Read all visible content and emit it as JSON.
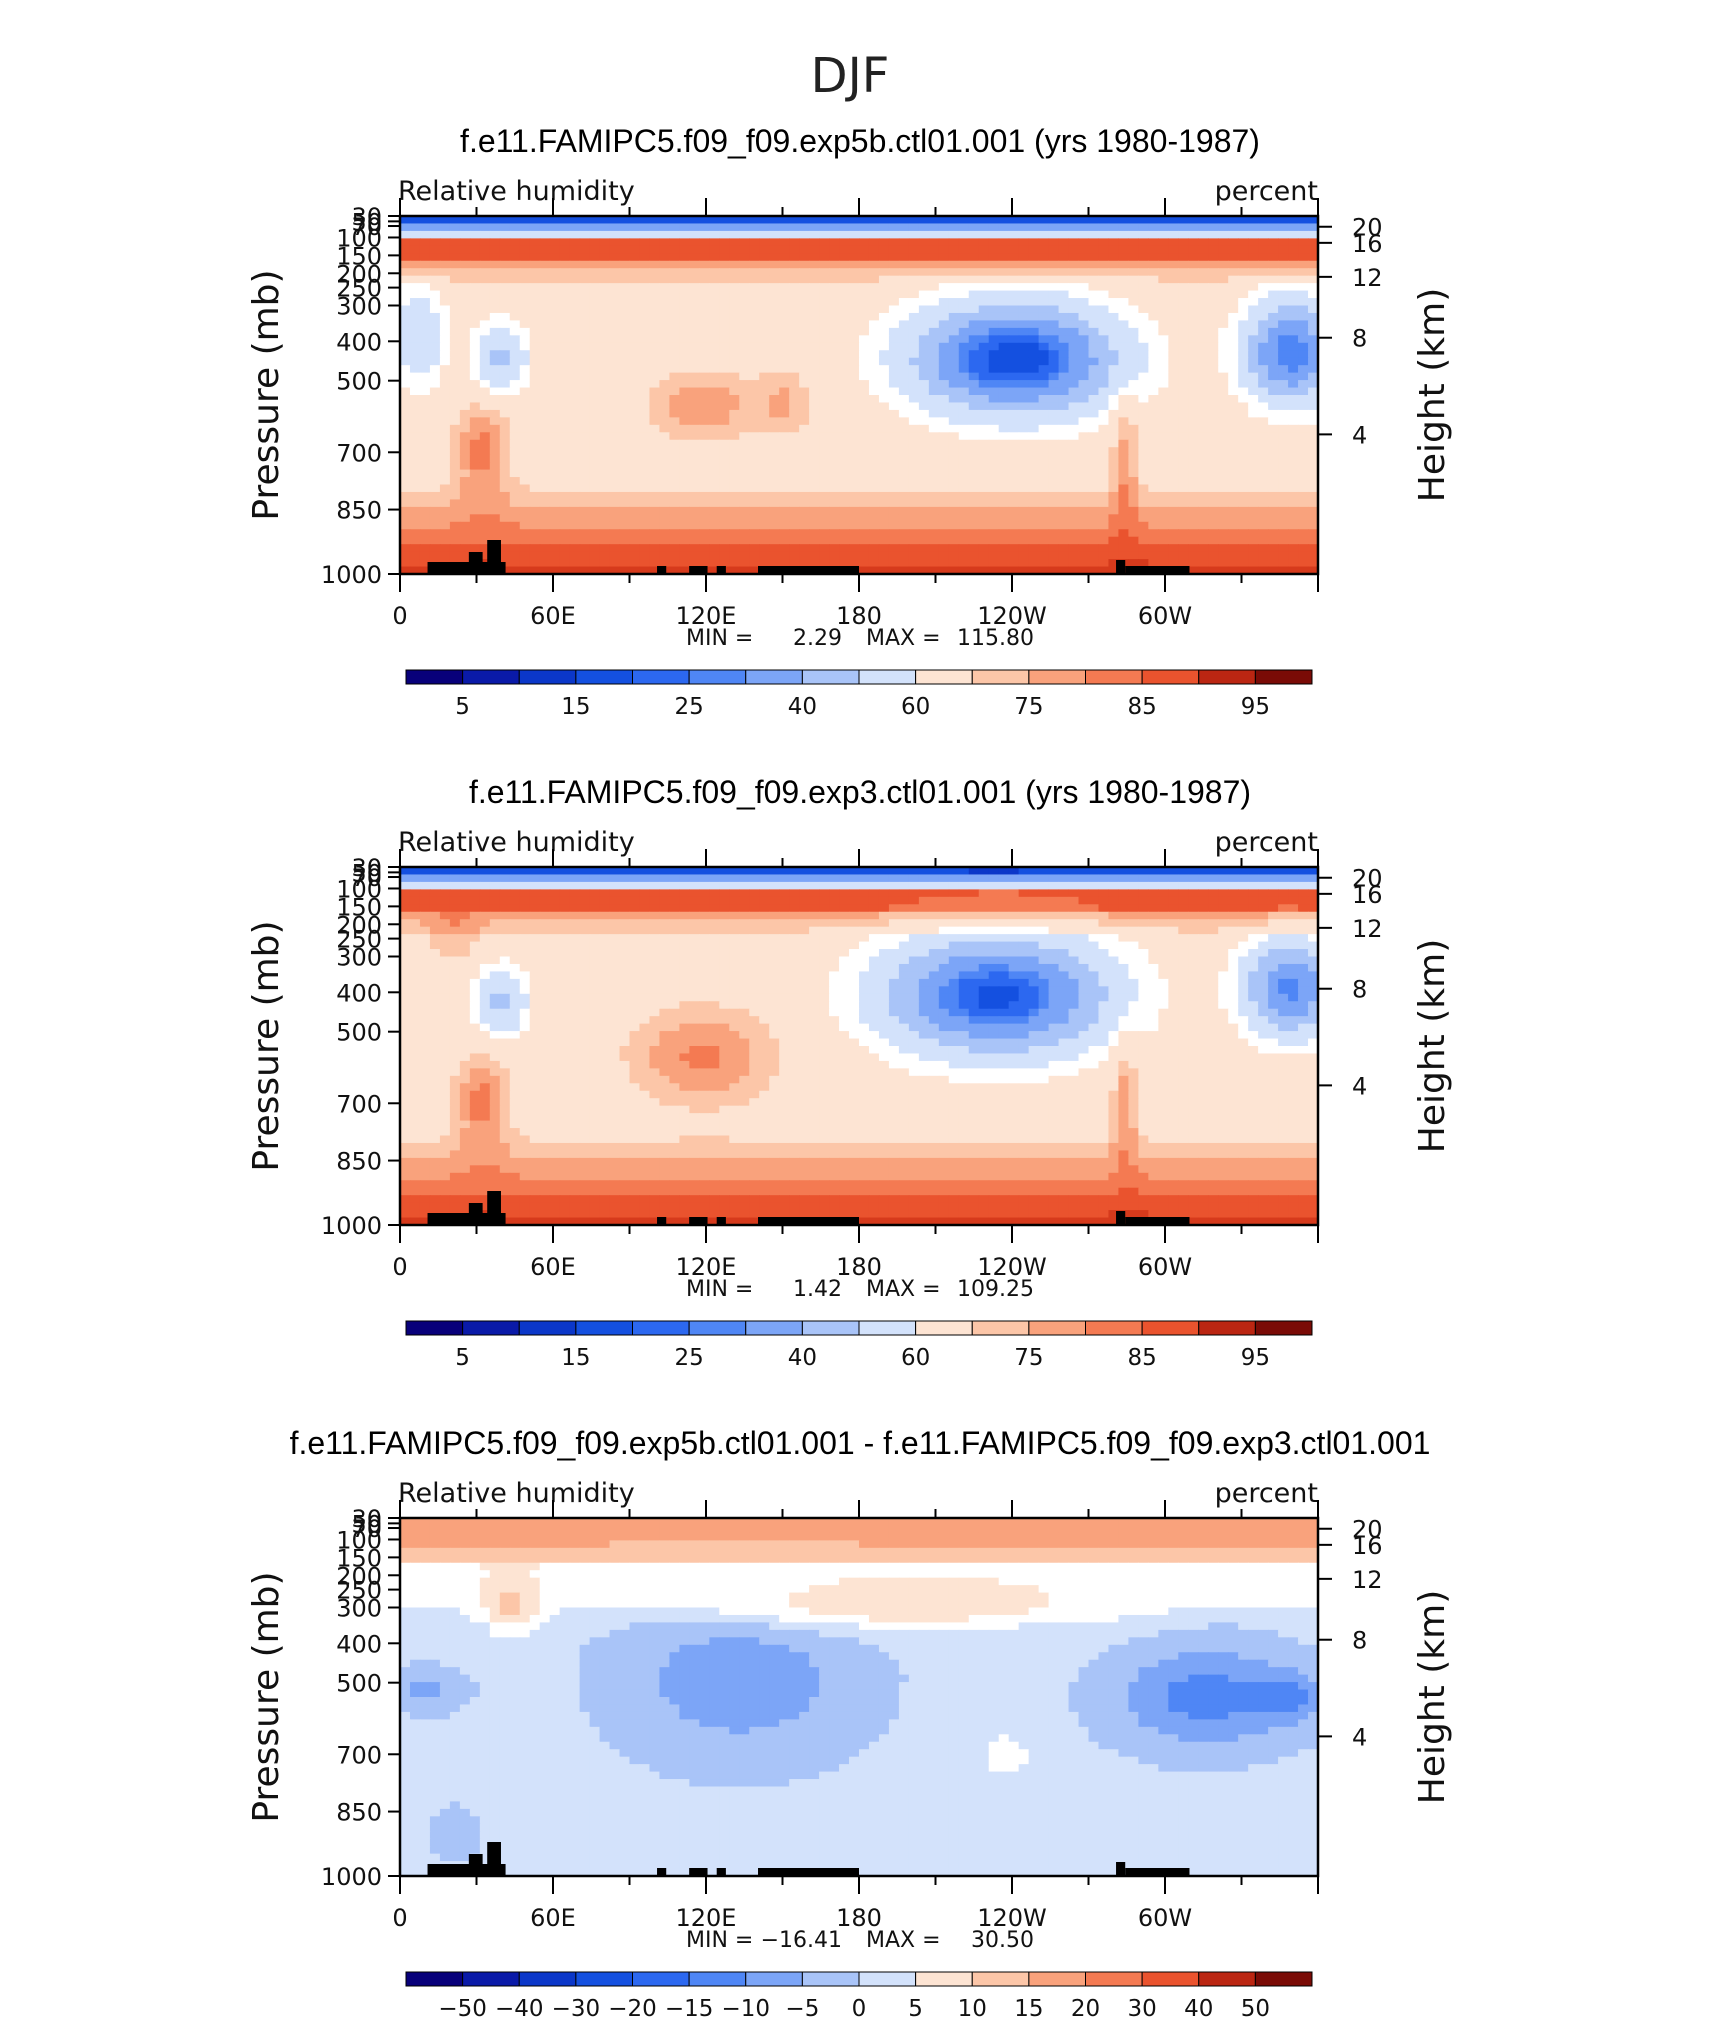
{
  "figure_title": "DJF",
  "colors": {
    "frame": "#000000",
    "topography": "#000000",
    "diverging_palette": [
      "#08007a",
      "#0a1aa8",
      "#0b37c9",
      "#1450e0",
      "#2c68f0",
      "#4f86f5",
      "#7ca5f7",
      "#a9c4f8",
      "#d3e2fb",
      "#ffffff",
      "#fde4d3",
      "#fcc6a8",
      "#f9a27c",
      "#f47a52",
      "#ea532e",
      "#d63a1c",
      "#bb2612",
      "#981a0c",
      "#7a0b06"
    ]
  },
  "chart_data": [
    {
      "type": "heatmap",
      "title": "f.e11.FAMIPC5.f09_f09.exp5b.ctl01.001 (yrs 1980-1987)",
      "left_label": "Relative humidity",
      "right_label": "percent",
      "ylabel": "Pressure (mb)",
      "y2label": "Height (km)",
      "x_ticks": [
        "0",
        "60E",
        "120E",
        "180",
        "120W",
        "60W"
      ],
      "y_ticks": [
        "30",
        "50",
        "70",
        "100",
        "150",
        "200",
        "250",
        "300",
        "400",
        "500",
        "700",
        "850",
        "1000"
      ],
      "y2_ticks": [
        "20",
        "16",
        "12",
        "8",
        "4"
      ],
      "minmax_text": {
        "min_label": "MIN =",
        "min": "2.29",
        "max_label": "MAX =",
        "max": "115.80"
      },
      "min": 2.29,
      "max": 115.8,
      "levels": [
        5,
        10,
        15,
        20,
        25,
        30,
        40,
        50,
        60,
        65,
        75,
        80,
        85,
        90,
        95
      ],
      "colorbar_labels": [
        "5",
        "15",
        "25",
        "40",
        "60",
        "75",
        "85",
        "95"
      ],
      "variant": "exp5b"
    },
    {
      "type": "heatmap",
      "title": "f.e11.FAMIPC5.f09_f09.exp3.ctl01.001 (yrs 1980-1987)",
      "left_label": "Relative humidity",
      "right_label": "percent",
      "ylabel": "Pressure (mb)",
      "y2label": "Height (km)",
      "x_ticks": [
        "0",
        "60E",
        "120E",
        "180",
        "120W",
        "60W"
      ],
      "y_ticks": [
        "30",
        "50",
        "70",
        "100",
        "150",
        "200",
        "250",
        "300",
        "400",
        "500",
        "700",
        "850",
        "1000"
      ],
      "y2_ticks": [
        "20",
        "16",
        "12",
        "8",
        "4"
      ],
      "minmax_text": {
        "min_label": "MIN =",
        "min": "1.42",
        "max_label": "MAX =",
        "max": "109.25"
      },
      "min": 1.42,
      "max": 109.25,
      "levels": [
        5,
        10,
        15,
        20,
        25,
        30,
        40,
        50,
        60,
        65,
        75,
        80,
        85,
        90,
        95
      ],
      "colorbar_labels": [
        "5",
        "15",
        "25",
        "40",
        "60",
        "75",
        "85",
        "95"
      ],
      "variant": "exp3"
    },
    {
      "type": "heatmap",
      "title": "f.e11.FAMIPC5.f09_f09.exp5b.ctl01.001 - f.e11.FAMIPC5.f09_f09.exp3.ctl01.001",
      "left_label": "Relative humidity",
      "right_label": "percent",
      "ylabel": "Pressure (mb)",
      "y2label": "Height (km)",
      "x_ticks": [
        "0",
        "60E",
        "120E",
        "180",
        "120W",
        "60W"
      ],
      "y_ticks": [
        "30",
        "50",
        "70",
        "100",
        "150",
        "200",
        "250",
        "300",
        "400",
        "500",
        "700",
        "850",
        "1000"
      ],
      "y2_ticks": [
        "20",
        "16",
        "12",
        "8",
        "4"
      ],
      "minmax_text": {
        "min_label": "MIN =",
        "min": "−16.41",
        "max_label": "MAX =",
        "max": "30.50"
      },
      "min": -16.41,
      "max": 30.5,
      "levels": [
        -50,
        -40,
        -30,
        -20,
        -15,
        -10,
        -5,
        0,
        5,
        10,
        15,
        20,
        30,
        40,
        50
      ],
      "colorbar_labels": [
        "−50",
        "−40",
        "−30",
        "−20",
        "−15",
        "−10",
        "−5",
        "0",
        "5",
        "10",
        "15",
        "20",
        "30",
        "40",
        "50"
      ],
      "variant": "diff"
    }
  ]
}
